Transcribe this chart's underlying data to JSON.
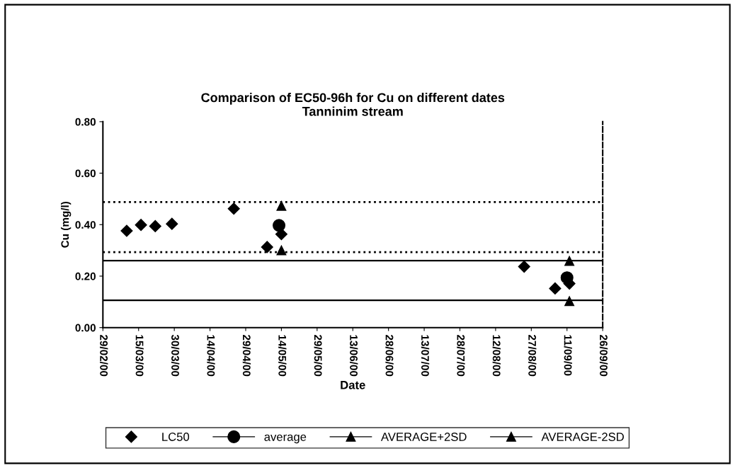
{
  "chart_data": {
    "type": "scatter",
    "title": "Comparison of EC50-96h for Cu on different dates\nTanninim stream",
    "xlabel": "Date",
    "ylabel": "Cu (mg/l)",
    "series": [
      {
        "name": "LC50",
        "color": "#000000",
        "marker": "diamond",
        "x": [
          "2000-03-10",
          "2000-03-16",
          "2000-03-22",
          "2000-03-29",
          "2000-04-24",
          "2000-05-08",
          "2000-05-14",
          "2000-08-24",
          "2000-09-06",
          "2000-09-12"
        ],
        "values": [
          0.376,
          0.399,
          0.394,
          0.403,
          0.462,
          0.313,
          0.363,
          0.237,
          0.152,
          0.171
        ]
      },
      {
        "name": "average",
        "color": "#000000",
        "marker": "circle",
        "x": [
          "2000-05-13",
          "2000-09-11"
        ],
        "values": [
          0.397,
          0.194
        ]
      },
      {
        "name": "AVERAGE+2SD",
        "color": "#000000",
        "marker": "triangle",
        "x": [
          "2000-05-14",
          "2000-09-12"
        ],
        "values": [
          0.473,
          0.259
        ]
      },
      {
        "name": "AVERAGE-2SD",
        "color": "#000000",
        "marker": "triangle",
        "x": [
          "2000-05-14",
          "2000-09-12"
        ],
        "values": [
          0.3,
          0.103
        ]
      }
    ],
    "ref_lines": [
      {
        "axis": "y",
        "value": 0.488,
        "line_style": "dotted",
        "color": "#000000"
      },
      {
        "axis": "y",
        "value": 0.293,
        "line_style": "dotted",
        "color": "#000000"
      },
      {
        "axis": "y",
        "value": 0.26,
        "line_style": "solid",
        "color": "#000000"
      },
      {
        "axis": "y",
        "value": 0.106,
        "line_style": "solid",
        "color": "#000000"
      }
    ],
    "xlim": [
      "2000-02-29",
      "2000-09-26"
    ],
    "xticks": [
      {
        "value": "2000-02-29",
        "label": "29/02/00"
      },
      {
        "value": "2000-03-15",
        "label": "15/03/00"
      },
      {
        "value": "2000-03-30",
        "label": "30/03/00"
      },
      {
        "value": "2000-04-14",
        "label": "14/04/00"
      },
      {
        "value": "2000-04-29",
        "label": "29/04/00"
      },
      {
        "value": "2000-05-14",
        "label": "14/05/00"
      },
      {
        "value": "2000-05-29",
        "label": "29/05/00"
      },
      {
        "value": "2000-06-13",
        "label": "13/06/00"
      },
      {
        "value": "2000-06-28",
        "label": "28/06/00"
      },
      {
        "value": "2000-07-13",
        "label": "13/07/00"
      },
      {
        "value": "2000-07-28",
        "label": "28/07/00"
      },
      {
        "value": "2000-08-12",
        "label": "12/08/00"
      },
      {
        "value": "2000-08-27",
        "label": "27/08/00"
      },
      {
        "value": "2000-09-11",
        "label": "11/09/00"
      },
      {
        "value": "2000-09-26",
        "label": "26/09/00"
      }
    ],
    "ylim": [
      0,
      0.8
    ],
    "yticks": [
      {
        "value": 0,
        "label": "0.00"
      },
      {
        "value": 0.2,
        "label": "0.20"
      },
      {
        "value": 0.4,
        "label": "0.40"
      },
      {
        "value": 0.6,
        "label": "0.60"
      },
      {
        "value": 0.8,
        "label": "0.80"
      }
    ],
    "grid": false,
    "legend": "bottom"
  }
}
